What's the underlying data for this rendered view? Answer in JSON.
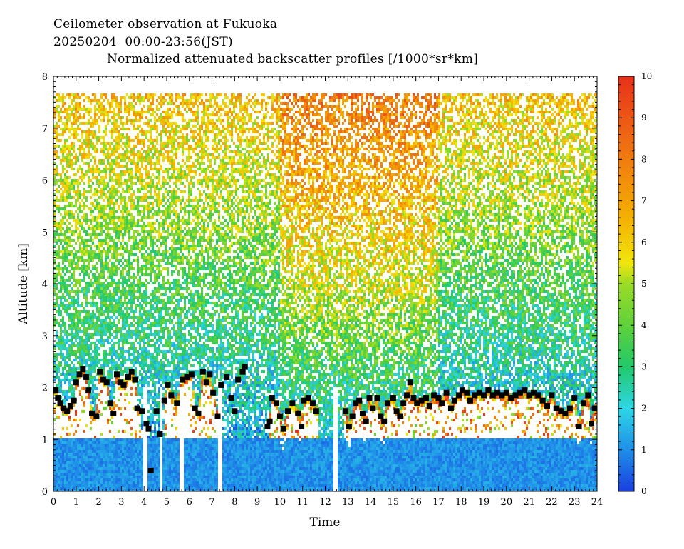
{
  "header": {
    "title": "Ceilometer observation at Fukuoka",
    "subtitle": "20250204  00:00-23:56(JST)",
    "variable": "Normalized attenuated backscatter profiles [/1000*sr*km]"
  },
  "chart_data": {
    "type": "heatmap",
    "title": "Normalized attenuated backscatter profiles [/1000*sr*km]",
    "xlabel": "Time",
    "ylabel": "Altitude [km]",
    "xlim": [
      0,
      24
    ],
    "ylim": [
      0,
      8
    ],
    "x_ticks": [
      "0",
      "1",
      "2",
      "3",
      "4",
      "5",
      "6",
      "7",
      "8",
      "9",
      "10",
      "11",
      "12",
      "13",
      "14",
      "15",
      "16",
      "17",
      "18",
      "19",
      "20",
      "21",
      "22",
      "23",
      "24"
    ],
    "y_ticks": [
      "0",
      "1",
      "2",
      "3",
      "4",
      "5",
      "6",
      "7",
      "8"
    ],
    "colorbar": {
      "min": 0,
      "max": 10,
      "ticks": [
        "0",
        "1",
        "2",
        "3",
        "4",
        "5",
        "6",
        "7",
        "8",
        "9",
        "10"
      ],
      "stops": [
        {
          "v": 0,
          "c": "#1a3fe0"
        },
        {
          "v": 1,
          "c": "#1f8fe8"
        },
        {
          "v": 2,
          "c": "#2ed6e6"
        },
        {
          "v": 3,
          "c": "#22c96a"
        },
        {
          "v": 4,
          "c": "#5fd13a"
        },
        {
          "v": 5,
          "c": "#9bdc26"
        },
        {
          "v": 5.5,
          "c": "#f1e60c"
        },
        {
          "v": 6.5,
          "c": "#f4b400"
        },
        {
          "v": 8,
          "c": "#f07c10"
        },
        {
          "v": 10,
          "c": "#e8301a"
        }
      ]
    },
    "cloud_base_marker": "black square",
    "cloud_base_points": [
      [
        0.1,
        1.95
      ],
      [
        0.2,
        1.8
      ],
      [
        0.3,
        1.7
      ],
      [
        0.45,
        1.6
      ],
      [
        0.6,
        1.55
      ],
      [
        0.75,
        1.65
      ],
      [
        0.9,
        1.75
      ],
      [
        1.0,
        2.1
      ],
      [
        1.15,
        2.25
      ],
      [
        1.3,
        2.35
      ],
      [
        1.45,
        2.2
      ],
      [
        1.55,
        1.95
      ],
      [
        1.7,
        1.5
      ],
      [
        1.9,
        1.45
      ],
      [
        2.05,
        2.3
      ],
      [
        2.2,
        2.15
      ],
      [
        2.35,
        2.1
      ],
      [
        2.5,
        1.7
      ],
      [
        2.65,
        1.5
      ],
      [
        2.8,
        2.25
      ],
      [
        2.95,
        2.1
      ],
      [
        3.1,
        2.05
      ],
      [
        3.3,
        2.2
      ],
      [
        3.45,
        2.3
      ],
      [
        3.6,
        2.15
      ],
      [
        3.7,
        1.6
      ],
      [
        3.9,
        1.55
      ],
      [
        4.1,
        1.3
      ],
      [
        4.2,
        1.2
      ],
      [
        4.3,
        0.4
      ],
      [
        4.55,
        1.55
      ],
      [
        4.7,
        1.1
      ],
      [
        4.9,
        1.75
      ],
      [
        5.05,
        2.05
      ],
      [
        5.2,
        1.85
      ],
      [
        5.45,
        1.7
      ],
      [
        5.7,
        2.15
      ],
      [
        5.9,
        2.2
      ],
      [
        6.1,
        2.25
      ],
      [
        6.25,
        1.6
      ],
      [
        6.4,
        1.5
      ],
      [
        6.6,
        2.3
      ],
      [
        6.75,
        2.1
      ],
      [
        6.9,
        2.25
      ],
      [
        7.05,
        1.9
      ],
      [
        7.25,
        1.45
      ],
      [
        7.4,
        2.05
      ],
      [
        7.65,
        2.2
      ],
      [
        7.85,
        1.8
      ],
      [
        8.0,
        1.55
      ],
      [
        8.15,
        2.15
      ],
      [
        8.35,
        2.3
      ],
      [
        8.45,
        2.4
      ],
      [
        9.45,
        1.25
      ],
      [
        9.55,
        1.35
      ],
      [
        9.65,
        1.8
      ],
      [
        9.85,
        1.7
      ],
      [
        10.0,
        1.45
      ],
      [
        10.15,
        1.2
      ],
      [
        10.35,
        1.55
      ],
      [
        10.55,
        1.7
      ],
      [
        10.8,
        1.5
      ],
      [
        10.95,
        1.25
      ],
      [
        11.05,
        1.75
      ],
      [
        11.25,
        1.8
      ],
      [
        11.45,
        1.7
      ],
      [
        11.6,
        1.55
      ],
      [
        12.9,
        1.55
      ],
      [
        13.05,
        1.25
      ],
      [
        13.2,
        1.45
      ],
      [
        13.35,
        1.7
      ],
      [
        13.5,
        1.75
      ],
      [
        13.65,
        1.5
      ],
      [
        13.8,
        1.35
      ],
      [
        13.95,
        1.8
      ],
      [
        14.1,
        1.6
      ],
      [
        14.3,
        1.8
      ],
      [
        14.45,
        1.45
      ],
      [
        14.6,
        1.35
      ],
      [
        14.75,
        1.7
      ],
      [
        15.0,
        1.8
      ],
      [
        15.15,
        1.55
      ],
      [
        15.3,
        1.45
      ],
      [
        15.45,
        1.7
      ],
      [
        15.6,
        1.85
      ],
      [
        15.75,
        2.1
      ],
      [
        15.9,
        1.8
      ],
      [
        16.05,
        1.7
      ],
      [
        16.25,
        1.75
      ],
      [
        16.45,
        1.8
      ],
      [
        16.6,
        1.65
      ],
      [
        16.8,
        1.85
      ],
      [
        17.0,
        1.8
      ],
      [
        17.15,
        1.7
      ],
      [
        17.35,
        1.9
      ],
      [
        17.55,
        1.6
      ],
      [
        17.7,
        1.75
      ],
      [
        17.9,
        1.85
      ],
      [
        18.05,
        1.95
      ],
      [
        18.25,
        1.9
      ],
      [
        18.4,
        1.75
      ],
      [
        18.6,
        1.85
      ],
      [
        18.8,
        1.9
      ],
      [
        19.0,
        1.85
      ],
      [
        19.2,
        1.95
      ],
      [
        19.4,
        1.85
      ],
      [
        19.6,
        1.9
      ],
      [
        19.8,
        1.85
      ],
      [
        20.0,
        1.9
      ],
      [
        20.2,
        1.8
      ],
      [
        20.4,
        1.85
      ],
      [
        20.6,
        1.9
      ],
      [
        20.8,
        1.95
      ],
      [
        21.0,
        1.85
      ],
      [
        21.2,
        1.9
      ],
      [
        21.4,
        1.85
      ],
      [
        21.6,
        1.75
      ],
      [
        21.8,
        1.65
      ],
      [
        22.0,
        1.85
      ],
      [
        22.2,
        1.6
      ],
      [
        22.4,
        1.55
      ],
      [
        22.6,
        1.5
      ],
      [
        22.8,
        1.6
      ],
      [
        23.0,
        1.8
      ],
      [
        23.2,
        1.25
      ],
      [
        23.4,
        1.7
      ],
      [
        23.6,
        1.85
      ],
      [
        23.75,
        1.3
      ],
      [
        23.9,
        1.6
      ]
    ]
  }
}
